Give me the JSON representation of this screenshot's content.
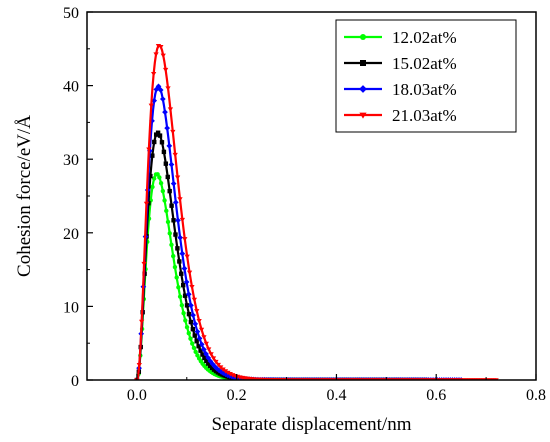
{
  "chart_data": {
    "type": "line",
    "title": "",
    "xlabel": "Separate displacement/nm",
    "ylabel": "Cohesion force/eV/Å",
    "xlim": [
      -0.1,
      0.8
    ],
    "ylim": [
      0,
      50
    ],
    "xticks": [
      0.0,
      0.2,
      0.4,
      0.6,
      0.8
    ],
    "xtick_labels": [
      "0.0",
      "0.2",
      "0.4",
      "0.6",
      "0.8"
    ],
    "yticks": [
      0,
      10,
      20,
      30,
      40,
      50
    ],
    "ytick_labels": [
      "0",
      "10",
      "20",
      "30",
      "40",
      "50"
    ],
    "grid": false,
    "legend_position": "top-right",
    "series": [
      {
        "name": "12.02at%",
        "color": "#00ff00",
        "marker": "circle",
        "peak_x": 0.04,
        "peak_y": 28.0,
        "end_x": 0.52
      },
      {
        "name": "15.02at%",
        "color": "#000000",
        "marker": "square",
        "peak_x": 0.042,
        "peak_y": 33.6,
        "end_x": 0.58
      },
      {
        "name": "18.03at%",
        "color": "#0000ff",
        "marker": "diamond",
        "peak_x": 0.043,
        "peak_y": 39.9,
        "end_x": 0.65
      },
      {
        "name": "21.03at%",
        "color": "#ff0000",
        "marker": "triangle-down",
        "peak_x": 0.045,
        "peak_y": 45.5,
        "end_x": 0.72
      }
    ]
  }
}
